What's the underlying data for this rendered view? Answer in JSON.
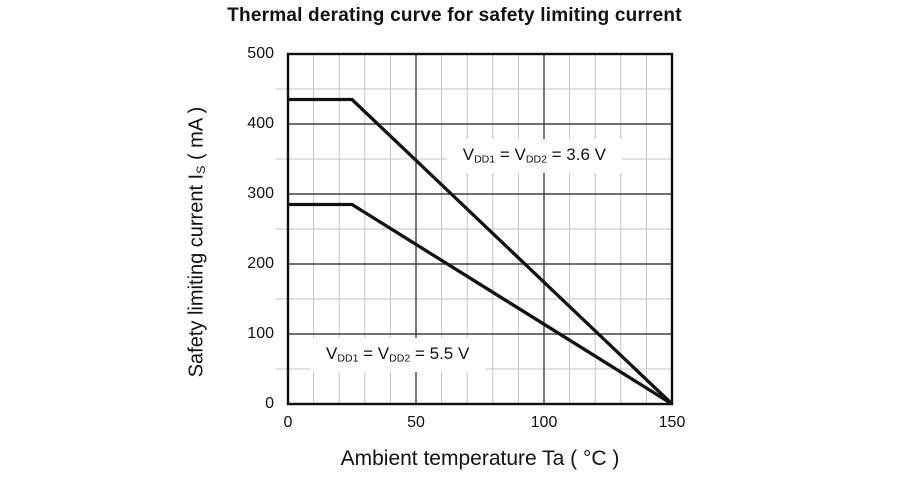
{
  "title": "Thermal derating curve for safety limiting current",
  "colors": {
    "background": "#ffffff",
    "text": "#111111",
    "curve": "#111111",
    "axis_border": "#111111",
    "minor_grid": "#c5c5c5",
    "major_grid": "#404040"
  },
  "chart_data": {
    "type": "line",
    "title": "Thermal derating curve for safety limiting current",
    "xlabel": "Ambient temperature Ta ( °C )",
    "ylabel": "Safety limiting current Is ( mA )",
    "ylabel_segments": [
      {
        "t": "Safety limiting current I"
      },
      {
        "s": "S"
      },
      {
        "t": " ( mA )"
      }
    ],
    "xlim": [
      0,
      150
    ],
    "ylim": [
      0,
      500
    ],
    "x_major_ticks": [
      0,
      50,
      100,
      150
    ],
    "x_minor_step": 10,
    "y_major_ticks": [
      0,
      100,
      200,
      300,
      400,
      500
    ],
    "y_minor_step": 50,
    "grid": true,
    "legend_position": "none",
    "series": [
      {
        "name": "VDD1 = VDD2 = 3.6 V",
        "points": [
          [
            0,
            435
          ],
          [
            25,
            435
          ],
          [
            150,
            0
          ]
        ]
      },
      {
        "name": "VDD1 = VDD2 = 5.5 V",
        "points": [
          [
            0,
            285
          ],
          [
            25,
            285
          ],
          [
            150,
            0
          ]
        ]
      }
    ],
    "annotations": [
      {
        "text": "VDD1 = VDD2 = 3.6 V",
        "segments": [
          {
            "t": "V"
          },
          {
            "s": "DD1"
          },
          {
            "t": " = V"
          },
          {
            "s": "DD2"
          },
          {
            "t": " = 3.6 V"
          }
        ],
        "x": 62,
        "y": 379
      },
      {
        "text": "VDD1 = VDD2 = 5.5 V",
        "segments": [
          {
            "t": "V"
          },
          {
            "s": "DD1"
          },
          {
            "t": " = V"
          },
          {
            "s": "DD2"
          },
          {
            "t": " = 5.5 V"
          }
        ],
        "x": 8.6,
        "y": 94
      }
    ]
  }
}
